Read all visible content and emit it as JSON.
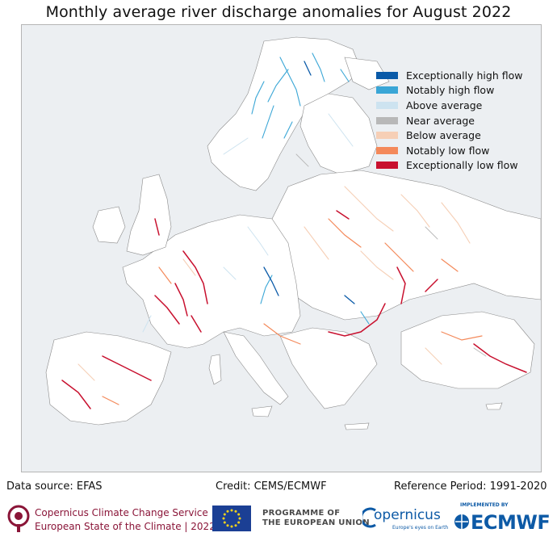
{
  "title": "Monthly average river discharge anomalies for August 2022",
  "legend": [
    {
      "label": "Exceptionally high flow",
      "color": "#0a5aa8"
    },
    {
      "label": "Notably high flow",
      "color": "#3aa6d6"
    },
    {
      "label": "Above average",
      "color": "#cde3f0"
    },
    {
      "label": "Near average",
      "color": "#b8b8b8"
    },
    {
      "label": "Below average",
      "color": "#f6cfb6"
    },
    {
      "label": "Notably low flow",
      "color": "#f4895a"
    },
    {
      "label": "Exceptionally low flow",
      "color": "#c8102e"
    }
  ],
  "footer": {
    "data_source": "Data source: EFAS",
    "credit": "Credit: CEMS/ECMWF",
    "reference_period": "Reference Period: 1991-2020"
  },
  "logos": {
    "c3s_line1": "Copernicus Climate Change Service",
    "c3s_line2": "European State of the Climate | 2022",
    "eu_line1": "PROGRAMME OF",
    "eu_line2": "THE EUROPEAN UNION",
    "copernicus": "opernicus",
    "copernicus_tagline": "Europe's eyes on Earth",
    "ecmwf_small": "IMPLEMENTED BY",
    "ecmwf": "ECMWF"
  },
  "colors": {
    "land": "#ffffff",
    "sea": "#eceff2",
    "coast": "#8a8a8a"
  }
}
